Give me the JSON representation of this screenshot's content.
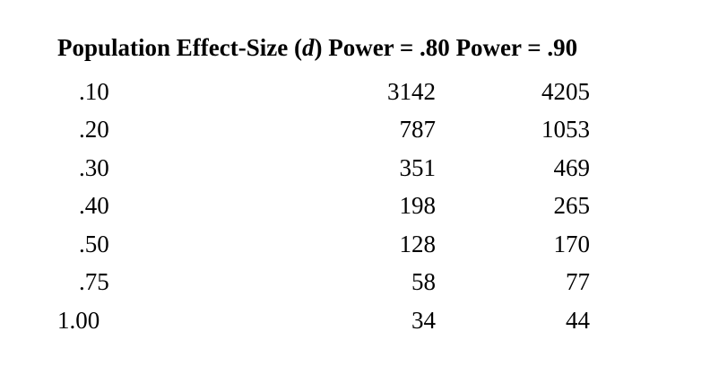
{
  "table": {
    "header": {
      "col1_prefix": "Population Effect-Size (",
      "col1_symbol": "d",
      "col1_suffix": ")",
      "col2": "Power = .80",
      "col3": "Power = .90"
    },
    "rows": [
      {
        "effect": ".10",
        "power80": "3142",
        "power90": "4205"
      },
      {
        "effect": ".20",
        "power80": "787",
        "power90": "1053"
      },
      {
        "effect": ".30",
        "power80": "351",
        "power90": "469"
      },
      {
        "effect": ".40",
        "power80": "198",
        "power90": "265"
      },
      {
        "effect": ".50",
        "power80": "128",
        "power90": "170"
      },
      {
        "effect": ".75",
        "power80": "58",
        "power90": "77"
      },
      {
        "effect": "1.00",
        "power80": "34",
        "power90": "44"
      }
    ]
  }
}
